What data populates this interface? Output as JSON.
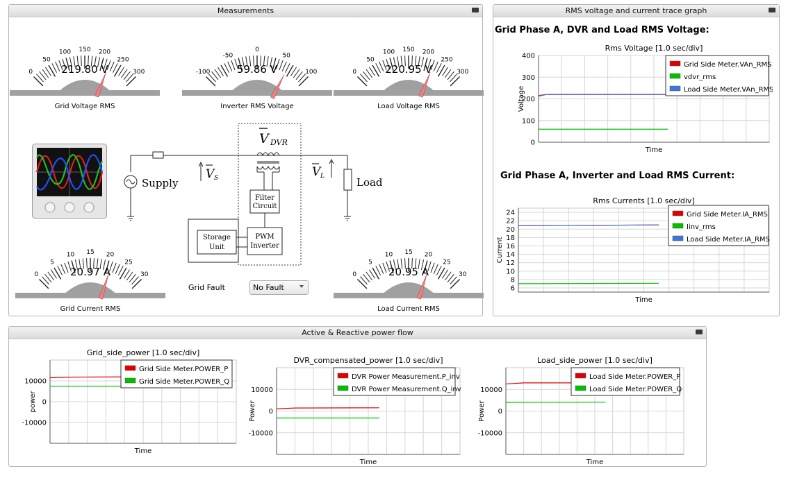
{
  "panels": {
    "measurements": "Measurements",
    "trace": "RMS voltage and current trace graph",
    "power": "Active & Reactive power flow"
  },
  "gauges": [
    {
      "id": "grid-voltage",
      "label": "Grid Voltage RMS",
      "readout": "219.80 V",
      "min": 0,
      "max": 300,
      "value": 219.8,
      "ticks": [
        "0",
        "50",
        "100",
        "150",
        "200",
        "250",
        "300"
      ]
    },
    {
      "id": "inverter-voltage",
      "label": "Inverter RMS Voltage",
      "readout": "59.86 V",
      "min": -100,
      "max": 100,
      "value": 59.86,
      "ticks": [
        "-100",
        "-50",
        "0",
        "50",
        "100"
      ]
    },
    {
      "id": "load-voltage",
      "label": "Load Voltage RMS",
      "readout": "220.95 V",
      "min": 0,
      "max": 300,
      "value": 220.95,
      "ticks": [
        "0",
        "50",
        "100",
        "150",
        "200",
        "250",
        "300"
      ]
    },
    {
      "id": "grid-current",
      "label": "Grid Current RMS",
      "readout": "20.97 A",
      "min": 0,
      "max": 30,
      "value": 20.97,
      "ticks": [
        "0",
        "5",
        "10",
        "15",
        "20",
        "25",
        "30"
      ]
    },
    {
      "id": "load-current",
      "label": "Load Current RMS",
      "readout": "20.95 A",
      "min": 0,
      "max": 30,
      "value": 20.95,
      "ticks": [
        "0",
        "5",
        "10",
        "15",
        "20",
        "25",
        "30"
      ]
    }
  ],
  "diagram": {
    "vdvr": "V",
    "vdvr_sub": "DVR",
    "vs": "V",
    "vs_sub": "S",
    "vl": "V",
    "vl_sub": "L",
    "supply": "Supply",
    "load": "Load",
    "filter1": "Filter",
    "filter2": "Circuit",
    "storage1": "Storage",
    "storage2": "Unit",
    "pwm1": "PWM",
    "pwm2": "Inverter"
  },
  "grid_fault": {
    "label": "Grid Fault",
    "value": "No Fault"
  },
  "trace": {
    "section_voltage": "Grid Phase A, DVR and Load RMS Voltage:",
    "section_current": "Grid Phase A, Inverter and Load RMS Current:"
  },
  "colors": {
    "red": "#e00000",
    "green": "#00c000",
    "blue": "#3a78d8",
    "needle": "#f08080"
  },
  "chart_data": [
    {
      "id": "rms-voltage",
      "type": "line",
      "title": "Rms Voltage [1.0 sec/div]",
      "xlabel": "Time",
      "ylabel": "Voltage",
      "ylim": [
        0,
        400
      ],
      "yticks": [
        0,
        100,
        200,
        300,
        400
      ],
      "grid": true,
      "legend": "top-right",
      "series": [
        {
          "name": "Grid Side Meter.VAn_RMS",
          "color": "#e00000",
          "x": [
            0,
            0.3,
            0.5,
            5.6
          ],
          "values": [
            215,
            220,
            219.8,
            219.8
          ]
        },
        {
          "name": "vdvr_rms",
          "color": "#00c000",
          "x": [
            0,
            5.6
          ],
          "values": [
            60,
            60
          ]
        },
        {
          "name": "Load Side Meter.VAn_RMS",
          "color": "#3a78d8",
          "x": [
            0,
            0.3,
            0.5,
            5.6
          ],
          "values": [
            212,
            219,
            220.9,
            220.9
          ]
        }
      ]
    },
    {
      "id": "rms-current",
      "type": "line",
      "title": "Rms Currents [1.0 sec/div]",
      "xlabel": "Time",
      "ylabel": "Current",
      "ylim": [
        5,
        25
      ],
      "yticks": [
        6,
        8,
        10,
        12,
        14,
        16,
        18,
        20,
        22,
        24
      ],
      "grid": true,
      "legend": "top-right",
      "series": [
        {
          "name": "Grid Side Meter.IA_RMS",
          "color": "#e00000",
          "x": [
            0,
            5.6
          ],
          "values": [
            20.8,
            21
          ]
        },
        {
          "name": "Iinv_rms",
          "color": "#00c000",
          "x": [
            0,
            5.6
          ],
          "values": [
            7,
            7.1
          ]
        },
        {
          "name": "Load Side Meter.IA_RMS",
          "color": "#3a78d8",
          "x": [
            0,
            5.6
          ],
          "values": [
            20.8,
            21
          ]
        }
      ]
    },
    {
      "id": "grid-side-power",
      "type": "line",
      "title": "Grid_side_power [1.0 sec/div]",
      "xlabel": "Time",
      "ylabel": "power",
      "ylim": [
        -20000,
        20000
      ],
      "yticks": [
        -10000,
        0,
        10000
      ],
      "grid": true,
      "legend": "top-right",
      "series": [
        {
          "name": "Grid Side Meter.POWER_P",
          "color": "#e00000",
          "x": [
            0,
            1,
            5.6
          ],
          "values": [
            11500,
            11800,
            12000
          ]
        },
        {
          "name": "Grid Side Meter.POWER_Q",
          "color": "#00c000",
          "x": [
            0,
            5.6
          ],
          "values": [
            7400,
            7500
          ]
        }
      ]
    },
    {
      "id": "dvr-compensated-power",
      "type": "line",
      "title": "DVR_compensated_power [1.0 sec/div]",
      "xlabel": "Time",
      "ylabel": "Power",
      "ylim": [
        -20000,
        20000
      ],
      "yticks": [
        -10000,
        0,
        10000
      ],
      "grid": true,
      "legend": "top-right",
      "series": [
        {
          "name": "DVR Power Measurement.P_inv",
          "color": "#e00000",
          "x": [
            0,
            1,
            5.6
          ],
          "values": [
            1000,
            1400,
            1500
          ]
        },
        {
          "name": "DVR Power Measurement.Q_inv",
          "color": "#00c000",
          "x": [
            0,
            5.6
          ],
          "values": [
            -3200,
            -3200
          ]
        }
      ]
    },
    {
      "id": "load-side-power",
      "type": "line",
      "title": "Load_side_power [1.0 sec/div]",
      "xlabel": "Time",
      "ylabel": "Power",
      "ylim": [
        -20000,
        20000
      ],
      "yticks": [
        -10000,
        0,
        10000
      ],
      "grid": true,
      "legend": "top-right",
      "series": [
        {
          "name": "Load Side Meter.POWER_P",
          "color": "#e00000",
          "x": [
            0,
            1,
            5.6
          ],
          "values": [
            12500,
            13000,
            13000
          ]
        },
        {
          "name": "Load Side Meter.POWER_Q",
          "color": "#00c000",
          "x": [
            0,
            5.6
          ],
          "values": [
            4000,
            4100
          ]
        }
      ]
    }
  ]
}
